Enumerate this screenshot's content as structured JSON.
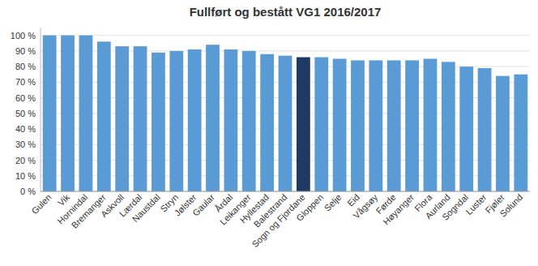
{
  "chart_data": {
    "type": "bar",
    "title": "Fullført og bestått VG1 2016/2017",
    "categories": [
      "Gulen",
      "Vik",
      "Hornindal",
      "Bremanger",
      "Askvoll",
      "Lærdal",
      "Naustdal",
      "Stryn",
      "Jølster",
      "Gaular",
      "Årdal",
      "Leikanger",
      "Hyllestad",
      "Balestrand",
      "Sogn og Fjordane",
      "Gloppen",
      "Selje",
      "Eid",
      "Vågsøy",
      "Førde",
      "Høyanger",
      "Flora",
      "Aurland",
      "Sogndal",
      "Luster",
      "Fjøler",
      "Solund"
    ],
    "values": [
      1.0,
      1.0,
      1.0,
      0.96,
      0.93,
      0.93,
      0.89,
      0.9,
      0.91,
      0.94,
      0.91,
      0.9,
      0.88,
      0.87,
      0.86,
      0.86,
      0.85,
      0.84,
      0.84,
      0.84,
      0.84,
      0.85,
      0.83,
      0.8,
      0.79,
      0.74,
      0.75
    ],
    "colors": [
      "#5B9BD5",
      "#5B9BD5",
      "#5B9BD5",
      "#5B9BD5",
      "#5B9BD5",
      "#5B9BD5",
      "#5B9BD5",
      "#5B9BD5",
      "#5B9BD5",
      "#5B9BD5",
      "#5B9BD5",
      "#5B9BD5",
      "#5B9BD5",
      "#5B9BD5",
      "#1F3864",
      "#5B9BD5",
      "#5B9BD5",
      "#5B9BD5",
      "#5B9BD5",
      "#5B9BD5",
      "#5B9BD5",
      "#5B9BD5",
      "#5B9BD5",
      "#5B9BD5",
      "#5B9BD5",
      "#5B9BD5",
      "#5B9BD5"
    ],
    "ylim": [
      0,
      1.05
    ],
    "yticks": [
      {
        "value": 0,
        "label": "0 %"
      },
      {
        "value": 0.1,
        "label": "10 %"
      },
      {
        "value": 0.2,
        "label": "20 %"
      },
      {
        "value": 0.3,
        "label": "30 %"
      },
      {
        "value": 0.4,
        "label": "40 %"
      },
      {
        "value": 0.5,
        "label": "50 %"
      },
      {
        "value": 0.6,
        "label": "60 %"
      },
      {
        "value": 0.7,
        "label": "70 %"
      },
      {
        "value": 0.8,
        "label": "80 %"
      },
      {
        "value": 0.9,
        "label": "90 %"
      },
      {
        "value": 1.0,
        "label": "100 %"
      }
    ],
    "grid": true
  }
}
